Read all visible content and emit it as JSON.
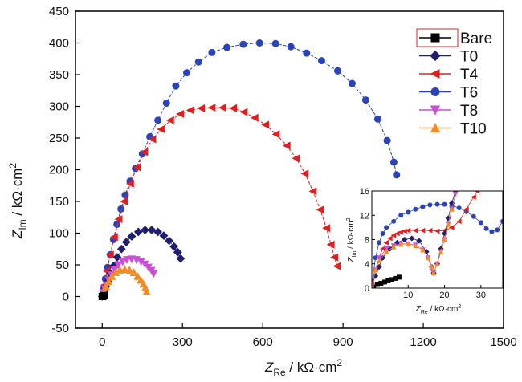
{
  "chart_data": [
    {
      "type": "scatter",
      "xlabel": "Z_Re / kΩ·cm²",
      "ylabel": "Z_Im / kΩ·cm²",
      "xlim": [
        -100,
        1500
      ],
      "ylim": [
        -50,
        450
      ],
      "xticks": [
        0,
        300,
        600,
        900,
        1200,
        1500
      ],
      "yticks": [
        -50,
        0,
        50,
        100,
        150,
        200,
        250,
        300,
        350,
        400,
        450
      ],
      "legend_position": "top-right",
      "grid": false,
      "series": [
        {
          "name": "Bare",
          "marker": "square",
          "color": "#000000",
          "points": [
            [
              0,
              0
            ],
            [
              2,
              0.5
            ],
            [
              4,
              1
            ],
            [
              6,
              1.2
            ],
            [
              8,
              1.5
            ]
          ]
        },
        {
          "name": "T0",
          "marker": "diamond",
          "color": "#1f1f6e",
          "points": [
            [
              0,
              0
            ],
            [
              4,
              4
            ],
            [
              8,
              8
            ],
            [
              14,
              16
            ],
            [
              20,
              24
            ],
            [
              30,
              36
            ],
            [
              42,
              48
            ],
            [
              56,
              62
            ],
            [
              72,
              75
            ],
            [
              90,
              86
            ],
            [
              110,
              95
            ],
            [
              135,
              102
            ],
            [
              160,
              105
            ],
            [
              185,
              105
            ],
            [
              208,
              102
            ],
            [
              230,
              96
            ],
            [
              250,
              88
            ],
            [
              268,
              79
            ],
            [
              282,
              70
            ],
            [
              293,
              60
            ]
          ]
        },
        {
          "name": "T4",
          "marker": "triangle-left",
          "color": "#e02020",
          "points": [
            [
              0,
              0
            ],
            [
              8,
              18
            ],
            [
              18,
              40
            ],
            [
              30,
              66
            ],
            [
              45,
              94
            ],
            [
              62,
              122
            ],
            [
              82,
              150
            ],
            [
              105,
              178
            ],
            [
              130,
              204
            ],
            [
              158,
              228
            ],
            [
              188,
              248
            ],
            [
              220,
              264
            ],
            [
              255,
              278
            ],
            [
              292,
              288
            ],
            [
              330,
              294
            ],
            [
              370,
              297
            ],
            [
              410,
              298
            ],
            [
              450,
              298
            ],
            [
              490,
              297
            ],
            [
              530,
              291
            ],
            [
              570,
              282
            ],
            [
              610,
              271
            ],
            [
              650,
              256
            ],
            [
              690,
              238
            ],
            [
              725,
              218
            ],
            [
              758,
              194
            ],
            [
              788,
              166
            ],
            [
              815,
              137
            ],
            [
              838,
              108
            ],
            [
              855,
              82
            ],
            [
              868,
              62
            ],
            [
              878,
              48
            ]
          ]
        },
        {
          "name": "T6",
          "marker": "circle",
          "color": "#2a44b8",
          "points": [
            [
              0,
              0
            ],
            [
              5,
              12
            ],
            [
              12,
              28
            ],
            [
              20,
              46
            ],
            [
              30,
              66
            ],
            [
              42,
              90
            ],
            [
              55,
              114
            ],
            [
              70,
              138
            ],
            [
              86,
              160
            ],
            [
              104,
              182
            ],
            [
              124,
              202
            ],
            [
              150,
              225
            ],
            [
              178,
              252
            ],
            [
              208,
              278
            ],
            [
              240,
              305
            ],
            [
              275,
              332
            ],
            [
              316,
              353
            ],
            [
              360,
              370
            ],
            [
              410,
              385
            ],
            [
              466,
              393
            ],
            [
              527,
              398
            ],
            [
              588,
              400
            ],
            [
              648,
              399
            ],
            [
              705,
              394
            ],
            [
              764,
              384
            ],
            [
              820,
              372
            ],
            [
              880,
              356
            ],
            [
              934,
              336
            ],
            [
              985,
              310
            ],
            [
              1030,
              280
            ],
            [
              1065,
              246
            ],
            [
              1090,
              212
            ],
            [
              1100,
              192
            ]
          ]
        },
        {
          "name": "T8",
          "marker": "triangle-down",
          "color": "#c94fd6",
          "points": [
            [
              0,
              0
            ],
            [
              5,
              6
            ],
            [
              10,
              12
            ],
            [
              16,
              18
            ],
            [
              24,
              26
            ],
            [
              34,
              34
            ],
            [
              46,
              42
            ],
            [
              60,
              50
            ],
            [
              76,
              55
            ],
            [
              92,
              58
            ],
            [
              110,
              59
            ],
            [
              128,
              58
            ],
            [
              145,
              55
            ],
            [
              160,
              51
            ],
            [
              173,
              46
            ],
            [
              184,
              41
            ],
            [
              192,
              36
            ]
          ]
        },
        {
          "name": "T10",
          "marker": "triangle-up",
          "color": "#f28c28",
          "points": [
            [
              0,
              0
            ],
            [
              6,
              8
            ],
            [
              14,
              16
            ],
            [
              24,
              24
            ],
            [
              36,
              32
            ],
            [
              50,
              38
            ],
            [
              66,
              42
            ],
            [
              84,
              43
            ],
            [
              102,
              42
            ],
            [
              118,
              38
            ],
            [
              132,
              32
            ],
            [
              144,
              26
            ],
            [
              154,
              20
            ],
            [
              161,
              14
            ],
            [
              166,
              8
            ]
          ]
        }
      ]
    },
    {
      "type": "scatter",
      "role": "inset",
      "xlabel": "Z_Re / kΩ·cm²",
      "ylabel": "Z_Im / kΩ·cm²",
      "xlim": [
        0,
        36
      ],
      "ylim": [
        0,
        16
      ],
      "xticks": [
        10,
        20,
        30
      ],
      "yticks": [
        0,
        4,
        8,
        12,
        16
      ],
      "grid": false,
      "series": [
        {
          "name": "Bare",
          "points": [
            [
              0.5,
              0.2
            ],
            [
              1.5,
              0.6
            ],
            [
              2.5,
              0.8
            ],
            [
              3.5,
              1.0
            ],
            [
              4.5,
              1.2
            ],
            [
              5.5,
              1.4
            ],
            [
              6.5,
              1.6
            ],
            [
              7.5,
              1.8
            ]
          ]
        },
        {
          "name": "T0",
          "points": [
            [
              0,
              0.5
            ],
            [
              1,
              2
            ],
            [
              2,
              3.5
            ],
            [
              3,
              5
            ],
            [
              5,
              6.5
            ],
            [
              7,
              7.5
            ],
            [
              9,
              8
            ],
            [
              11,
              8.2
            ],
            [
              13,
              7.8
            ],
            [
              15,
              6
            ],
            [
              16.5,
              3.5
            ],
            [
              17,
              2.5
            ],
            [
              18,
              4
            ],
            [
              19,
              6.5
            ],
            [
              20,
              9
            ],
            [
              21,
              11.5
            ],
            [
              22,
              14
            ],
            [
              23,
              16
            ]
          ]
        },
        {
          "name": "T4",
          "points": [
            [
              0,
              0.5
            ],
            [
              1,
              3
            ],
            [
              2,
              5
            ],
            [
              3,
              6.5
            ],
            [
              4,
              7.5
            ],
            [
              5,
              8.2
            ],
            [
              6,
              8.7
            ],
            [
              7,
              9
            ],
            [
              8,
              9.2
            ],
            [
              9,
              9.4
            ],
            [
              10,
              9.5
            ],
            [
              12,
              9.5
            ],
            [
              14,
              9.5
            ],
            [
              16,
              9.5
            ],
            [
              18,
              9.4
            ],
            [
              20,
              9.5
            ],
            [
              22,
              10
            ],
            [
              24,
              11
            ],
            [
              26,
              13
            ],
            [
              28,
              15
            ],
            [
              29,
              16
            ]
          ]
        },
        {
          "name": "T6",
          "points": [
            [
              0,
              0.5
            ],
            [
              1,
              5
            ],
            [
              2,
              7.5
            ],
            [
              3,
              9
            ],
            [
              4,
              10
            ],
            [
              6,
              11
            ],
            [
              8,
              12
            ],
            [
              10,
              12.5
            ],
            [
              12,
              13
            ],
            [
              14,
              13.4
            ],
            [
              16,
              13.7
            ],
            [
              18,
              13.8
            ],
            [
              20,
              13.8
            ],
            [
              22,
              13.6
            ],
            [
              24,
              13.2
            ],
            [
              26,
              12.6
            ],
            [
              28,
              11.8
            ],
            [
              30,
              10.8
            ],
            [
              31.5,
              9.8
            ],
            [
              33,
              9.3
            ],
            [
              34.5,
              9.6
            ],
            [
              36,
              11
            ]
          ]
        },
        {
          "name": "T8",
          "points": [
            [
              0,
              0.3
            ],
            [
              1,
              3
            ],
            [
              2,
              5
            ],
            [
              4,
              6.5
            ],
            [
              6,
              7
            ],
            [
              8,
              7.3
            ],
            [
              10,
              7.3
            ],
            [
              12,
              7.1
            ],
            [
              14,
              6.3
            ],
            [
              15.5,
              5
            ],
            [
              16.5,
              3
            ],
            [
              17,
              2.5
            ],
            [
              18,
              4
            ],
            [
              19,
              6
            ],
            [
              20,
              8
            ],
            [
              21,
              10.5
            ],
            [
              22,
              13
            ],
            [
              23,
              15.5
            ]
          ]
        },
        {
          "name": "T10",
          "points": [
            [
              0,
              0.3
            ],
            [
              1,
              3
            ],
            [
              2,
              4.5
            ],
            [
              4,
              6
            ],
            [
              6,
              6.8
            ],
            [
              8,
              7.2
            ],
            [
              10,
              7.3
            ],
            [
              12,
              7
            ],
            [
              14,
              6.3
            ],
            [
              15.5,
              5
            ],
            [
              16.5,
              3.5
            ],
            [
              17,
              2.5
            ],
            [
              18,
              4
            ],
            [
              19,
              6
            ],
            [
              20,
              8
            ],
            [
              21,
              10.5
            ],
            [
              22,
              13
            ]
          ]
        }
      ]
    }
  ],
  "labels": {
    "y_main": "Z",
    "y_sub": "Im",
    "y_unit": " / kΩ·cm",
    "y_exp": "2",
    "x_main": "Z",
    "x_sub": "Re",
    "x_unit": " / kΩ·cm",
    "x_exp": "2"
  }
}
